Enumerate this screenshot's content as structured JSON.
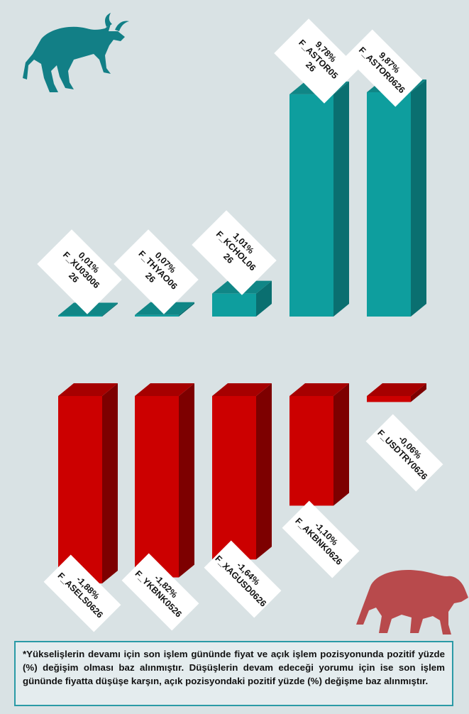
{
  "colors": {
    "background": "#d9e2e4",
    "up_front": "#0e9e9e",
    "up_side": "#0a6f70",
    "up_top": "#108686",
    "down_front": "#cc0000",
    "down_side": "#7d0000",
    "down_top": "#a60000",
    "note_border": "#2a9aa6",
    "bull_icon": "#127f86",
    "bear_icon": "#b84a4c"
  },
  "icons": {
    "bull": "bull-icon",
    "bear": "bear-icon"
  },
  "chart_data": [
    {
      "type": "bar",
      "direction": "up",
      "categories": [
        "F_XU03006 26",
        "F_THYAO06 26",
        "F_KCHOL06 26",
        "F_ASTOR05 26",
        "F_ASTOR0626"
      ],
      "values": [
        0.01,
        0.07,
        1.01,
        9.78,
        9.87
      ],
      "value_labels": [
        "0,01%",
        "0,07%",
        "1,01%",
        "9,78%",
        "9,87%"
      ],
      "label_lines": [
        [
          "0,01%",
          "F_XU03006",
          "26"
        ],
        [
          "0,07%",
          "F_THYAO06",
          "26"
        ],
        [
          "1,01%",
          "F_KCHOL06",
          "26"
        ],
        [
          "9,78%",
          "F_ASTOR05",
          "26"
        ],
        [
          "9,87%",
          "F_ASTOR0626"
        ]
      ],
      "unit": "%"
    },
    {
      "type": "bar",
      "direction": "down",
      "categories": [
        "F_ASELS0626",
        "F_YKBNK0526",
        "F_XAGUSD0626",
        "F_AKBNK0626",
        "F_USDTRY0626"
      ],
      "values": [
        -1.88,
        -1.82,
        -1.64,
        -1.1,
        -0.06
      ],
      "value_labels": [
        "-1,88%",
        "-1,82%",
        "-1,64%",
        "-1,10%",
        "-0,06%"
      ],
      "label_lines": [
        [
          "-1,88%",
          "F_ASELS0626"
        ],
        [
          "-1,82%",
          "F_YKBNK0526"
        ],
        [
          "-1,64%",
          "F_XAGUSD0626"
        ],
        [
          "-1,10%",
          "F_AKBNK0626"
        ],
        [
          "-0,06%",
          "F_USDTRY0626"
        ]
      ],
      "unit": "%"
    }
  ],
  "note": "*Yükselişlerin devamı için son işlem gününde fiyat ve açık işlem pozisyonunda pozitif yüzde (%) değişim olması baz alınmıştır. Düşüşlerin devam edeceği yorumu için ise son işlem gününde fiyatta düşüşe karşın, açık pozisyondaki pozitif yüzde (%) değişme baz alınmıştır."
}
